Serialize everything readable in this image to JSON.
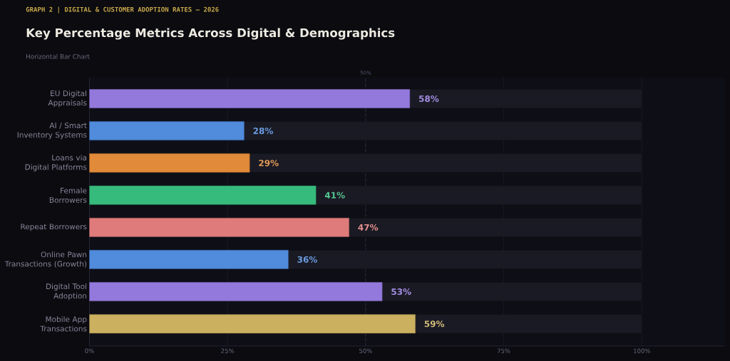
{
  "chart_data": {
    "type": "bar",
    "orientation": "horizontal",
    "stacked": true,
    "subtitle": "GRAPH 2  |  DIGITAL & CUSTOMER ADOPTION RATES — 2026",
    "title": "Key Percentage Metrics Across Digital & Demographics",
    "annotations": [
      "Horizontal Bar Chart"
    ],
    "categories": [
      "EU Digital\nAppraisals",
      "AI / Smart\nInventory Systems",
      "Loans via\nDigital Platforms",
      "Female\nBorrowers",
      "Repeat Borrowers",
      "Online Pawn\nTransactions (Growth)",
      "Digital Tool\nAdoption",
      "Mobile App\nTransactions"
    ],
    "series": [
      {
        "colors": [
          "#9379dc",
          "#508bdc",
          "#e08a3a",
          "#37bb7c",
          "#e07b7b",
          "#508bdc",
          "#9379dc",
          "#cbb060"
        ],
        "values": [
          58,
          28,
          29,
          41,
          47,
          36,
          53,
          59
        ],
        "value_labels": [
          "58%",
          "28%",
          "29%",
          "41%",
          "47%",
          "36%",
          "53%",
          "59%"
        ]
      },
      {
        "color": "#1a1a24",
        "values": [
          42,
          72,
          71,
          59,
          53,
          64,
          47,
          41
        ]
      }
    ],
    "xlim": [
      0,
      115
    ],
    "xticks": [
      {
        "value": 0,
        "label": "0%"
      },
      {
        "value": 25,
        "label": "25%"
      },
      {
        "value": 50,
        "label": "50%"
      },
      {
        "value": 75,
        "label": "75%"
      },
      {
        "value": 100,
        "label": "100%"
      }
    ],
    "grid": "x",
    "ref_lines": [
      {
        "axis": "x",
        "value": 50,
        "label": "50%",
        "line_style": "dashed"
      }
    ]
  }
}
